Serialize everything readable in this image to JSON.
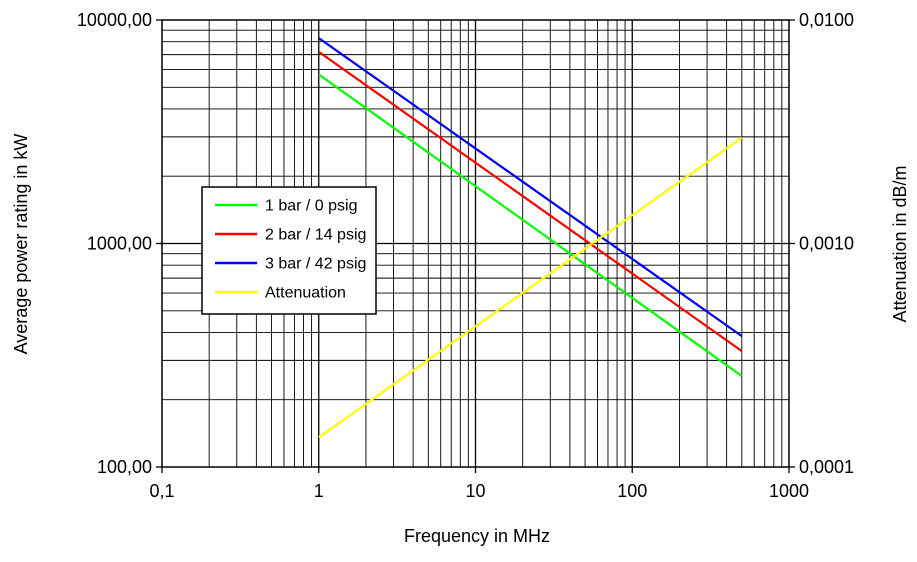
{
  "chart_data": {
    "type": "line",
    "title": "",
    "xlabel": "Frequency in MHz",
    "ylabel": "Average power rating in kW",
    "y2label": "Attenuation in dB/m",
    "xscale": "log",
    "yscale": "log",
    "y2scale": "log",
    "xlim": [
      0.1,
      1000
    ],
    "ylim": [
      100,
      10000
    ],
    "y2lim": [
      0.0001,
      0.01
    ],
    "grid": true,
    "legend_position": "center-left",
    "x_tick_labels": [
      "0,1",
      "1",
      "10",
      "100",
      "1000"
    ],
    "y_tick_labels": [
      "100,00",
      "1000,00",
      "10000,00"
    ],
    "y2_tick_labels": [
      "0,0001",
      "0,0010",
      "0,0100"
    ],
    "series": [
      {
        "name": "1 bar / 0 psig",
        "axis": "left",
        "color": "#00ff00",
        "x": [
          1,
          500
        ],
        "y": [
          5700,
          255
        ]
      },
      {
        "name": "2 bar / 14 psig",
        "axis": "left",
        "color": "#ff0000",
        "x": [
          1,
          500
        ],
        "y": [
          7200,
          330
        ]
      },
      {
        "name": "3 bar / 42 psig",
        "axis": "left",
        "color": "#0000ff",
        "x": [
          1,
          500
        ],
        "y": [
          8300,
          385
        ]
      },
      {
        "name": "Attenuation",
        "axis": "right",
        "color": "#ffff00",
        "x": [
          1,
          500
        ],
        "y": [
          0.000136,
          0.00298
        ]
      }
    ]
  }
}
